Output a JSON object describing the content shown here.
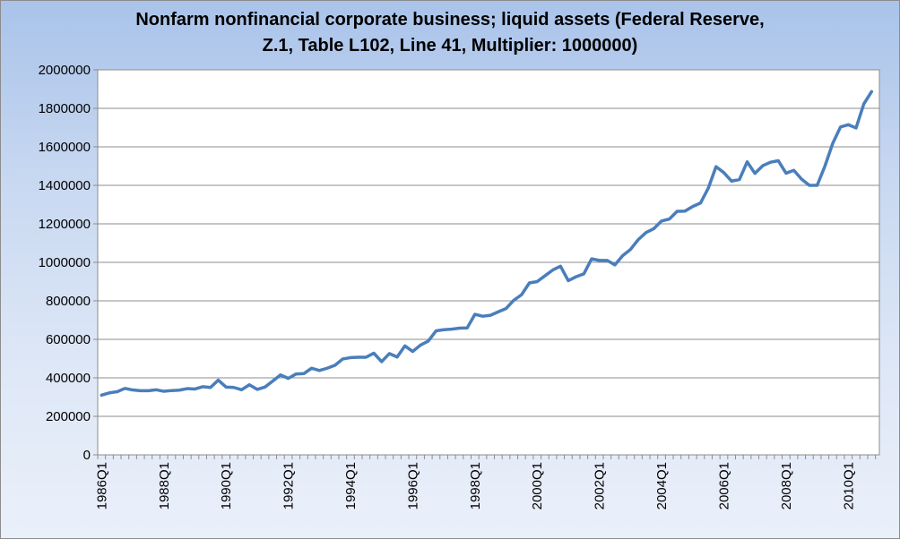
{
  "colors": {
    "line": "#4a7ebb",
    "grid": "#8c8c8c",
    "plot_bg": "#ffffff"
  },
  "chart_data": {
    "type": "line",
    "title_line1": "Nonfarm nonfinancial corporate business; liquid assets (Federal Reserve,",
    "title_line2": "Z.1, Table L102, Line 41, Multiplier: 1000000)",
    "xlabel": "",
    "ylabel": "",
    "ylim": [
      0,
      2000000
    ],
    "yticks": [
      "0",
      "200000",
      "400000",
      "600000",
      "800000",
      "1000000",
      "1200000",
      "1400000",
      "1600000",
      "1800000",
      "2000000"
    ],
    "xticks": [
      "1986Q1",
      "1988Q1",
      "1990Q1",
      "1992Q1",
      "1994Q1",
      "1996Q1",
      "1998Q1",
      "2000Q1",
      "2002Q1",
      "2004Q1",
      "2006Q1",
      "2008Q1",
      "2010Q1"
    ],
    "grid": true,
    "legend": "none",
    "series": [
      {
        "name": "liquid assets",
        "start": "1986Q1",
        "values": [
          310000,
          322000,
          328000,
          345000,
          337000,
          333000,
          333000,
          338000,
          330000,
          334000,
          336000,
          344000,
          342000,
          354000,
          350000,
          388000,
          352000,
          350000,
          338000,
          364000,
          340000,
          352000,
          383000,
          415000,
          397000,
          420000,
          422000,
          450000,
          438000,
          450000,
          465000,
          498000,
          505000,
          507000,
          507000,
          528000,
          484000,
          526000,
          508000,
          566000,
          537000,
          570000,
          591000,
          644000,
          650000,
          653000,
          658000,
          659000,
          730000,
          720000,
          725000,
          743000,
          760000,
          803000,
          832000,
          893000,
          900000,
          930000,
          960000,
          980000,
          905000,
          925000,
          940000,
          1018000,
          1010000,
          1010000,
          987000,
          1035000,
          1067000,
          1118000,
          1155000,
          1175000,
          1215000,
          1225000,
          1265000,
          1266000,
          1290000,
          1308000,
          1385000,
          1497000,
          1466000,
          1422000,
          1430000,
          1522000,
          1462000,
          1502000,
          1520000,
          1528000,
          1463000,
          1478000,
          1432000,
          1400000,
          1400000,
          1500000,
          1618000,
          1703000,
          1715000,
          1698000,
          1823000,
          1887000
        ]
      }
    ]
  }
}
